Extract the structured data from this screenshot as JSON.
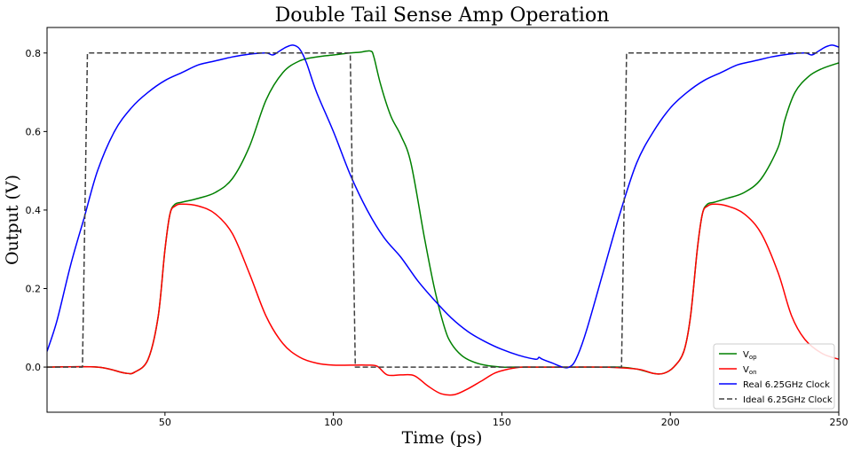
{
  "chart_data": {
    "type": "line",
    "title": "Double Tail Sense Amp Operation",
    "xlabel": "Time (ps)",
    "ylabel": "Output (V)",
    "xlim": [
      15,
      250
    ],
    "ylim": [
      -0.115,
      0.865
    ],
    "xticks": [
      50,
      100,
      150,
      200,
      250
    ],
    "yticks": [
      0.0,
      0.2,
      0.4,
      0.6,
      0.8
    ],
    "grid": false,
    "legend_position": "lower-right",
    "series": [
      {
        "name": "V_op",
        "legend_main": "V",
        "legend_sub": "op",
        "color": "#008000",
        "style": "solid",
        "x": [
          15,
          30,
          38,
          41,
          45,
          48,
          50,
          51.5,
          53,
          55,
          60,
          65,
          70,
          75,
          80,
          85,
          90,
          95,
          100,
          105,
          108,
          111,
          112,
          114,
          117,
          120,
          123,
          127,
          130,
          133,
          135,
          138,
          141,
          145,
          150,
          155,
          160,
          165,
          170,
          175,
          180,
          185,
          190,
          195,
          198,
          201,
          204,
          206,
          208,
          209.5,
          211,
          213,
          217,
          222,
          227,
          232,
          234,
          237,
          241,
          245,
          250
        ],
        "y": [
          0.0,
          0.0,
          -0.015,
          -0.013,
          0.02,
          0.13,
          0.3,
          0.39,
          0.415,
          0.42,
          0.43,
          0.445,
          0.48,
          0.56,
          0.68,
          0.75,
          0.78,
          0.79,
          0.795,
          0.8,
          0.802,
          0.805,
          0.79,
          0.72,
          0.64,
          0.59,
          0.52,
          0.33,
          0.2,
          0.1,
          0.06,
          0.03,
          0.015,
          0.005,
          0.0,
          0.0,
          0.0,
          0.0,
          0.0,
          0.0,
          0.0,
          0.0,
          -0.005,
          -0.016,
          -0.016,
          0.0,
          0.04,
          0.13,
          0.3,
          0.39,
          0.415,
          0.42,
          0.43,
          0.445,
          0.48,
          0.56,
          0.63,
          0.7,
          0.74,
          0.76,
          0.775
        ]
      },
      {
        "name": "V_on",
        "legend_main": "V",
        "legend_sub": "on",
        "color": "#ff0000",
        "style": "solid",
        "x": [
          15,
          30,
          38,
          41,
          45,
          48,
          50,
          51.5,
          53,
          55,
          60,
          65,
          70,
          75,
          80,
          85,
          90,
          95,
          100,
          105,
          110,
          113,
          116,
          120,
          124,
          128,
          132,
          136,
          140,
          144,
          148,
          152,
          156,
          160,
          170,
          180,
          190,
          195,
          198,
          201,
          204,
          206,
          208,
          209.5,
          211,
          213,
          217,
          222,
          227,
          232,
          236,
          240,
          245,
          250
        ],
        "y": [
          0.0,
          0.0,
          -0.015,
          -0.013,
          0.02,
          0.13,
          0.3,
          0.39,
          0.41,
          0.415,
          0.41,
          0.39,
          0.34,
          0.24,
          0.13,
          0.06,
          0.025,
          0.01,
          0.005,
          0.005,
          0.005,
          0.002,
          -0.02,
          -0.02,
          -0.022,
          -0.048,
          -0.068,
          -0.07,
          -0.055,
          -0.035,
          -0.015,
          -0.005,
          0.0,
          0.0,
          0.0,
          0.0,
          -0.005,
          -0.016,
          -0.016,
          0.0,
          0.04,
          0.13,
          0.3,
          0.39,
          0.41,
          0.415,
          0.41,
          0.39,
          0.34,
          0.24,
          0.13,
          0.07,
          0.035,
          0.02
        ]
      },
      {
        "name": "Real 6.25GHz Clock",
        "color": "#0000ff",
        "style": "solid",
        "x": [
          15,
          18,
          22,
          26,
          30,
          35,
          40,
          45,
          50,
          55,
          60,
          65,
          70,
          75,
          80,
          82,
          84,
          86,
          88,
          90,
          92,
          95,
          100,
          105,
          110,
          115,
          120,
          125,
          130,
          135,
          140,
          145,
          150,
          155,
          160,
          161,
          162,
          165,
          168,
          170,
          172,
          175,
          180,
          185,
          190,
          195,
          200,
          205,
          210,
          215,
          220,
          225,
          230,
          235,
          240,
          242,
          244,
          246,
          248,
          250
        ],
        "y": [
          0.04,
          0.12,
          0.26,
          0.38,
          0.5,
          0.6,
          0.66,
          0.7,
          0.73,
          0.75,
          0.77,
          0.78,
          0.79,
          0.797,
          0.8,
          0.795,
          0.805,
          0.815,
          0.82,
          0.81,
          0.775,
          0.7,
          0.6,
          0.49,
          0.4,
          0.33,
          0.28,
          0.22,
          0.17,
          0.125,
          0.09,
          0.065,
          0.045,
          0.03,
          0.02,
          0.025,
          0.02,
          0.01,
          0.0,
          0.0,
          0.02,
          0.09,
          0.24,
          0.39,
          0.52,
          0.6,
          0.66,
          0.7,
          0.73,
          0.75,
          0.77,
          0.78,
          0.79,
          0.797,
          0.8,
          0.795,
          0.805,
          0.815,
          0.82,
          0.815
        ]
      },
      {
        "name": "Ideal 6.25GHz Clock",
        "color": "#404040",
        "style": "dashed",
        "x": [
          15,
          25.5,
          27,
          105,
          106.5,
          185.5,
          187,
          250
        ],
        "y": [
          0.0,
          0.0,
          0.8,
          0.8,
          0.0,
          0.0,
          0.8,
          0.8
        ]
      }
    ]
  }
}
